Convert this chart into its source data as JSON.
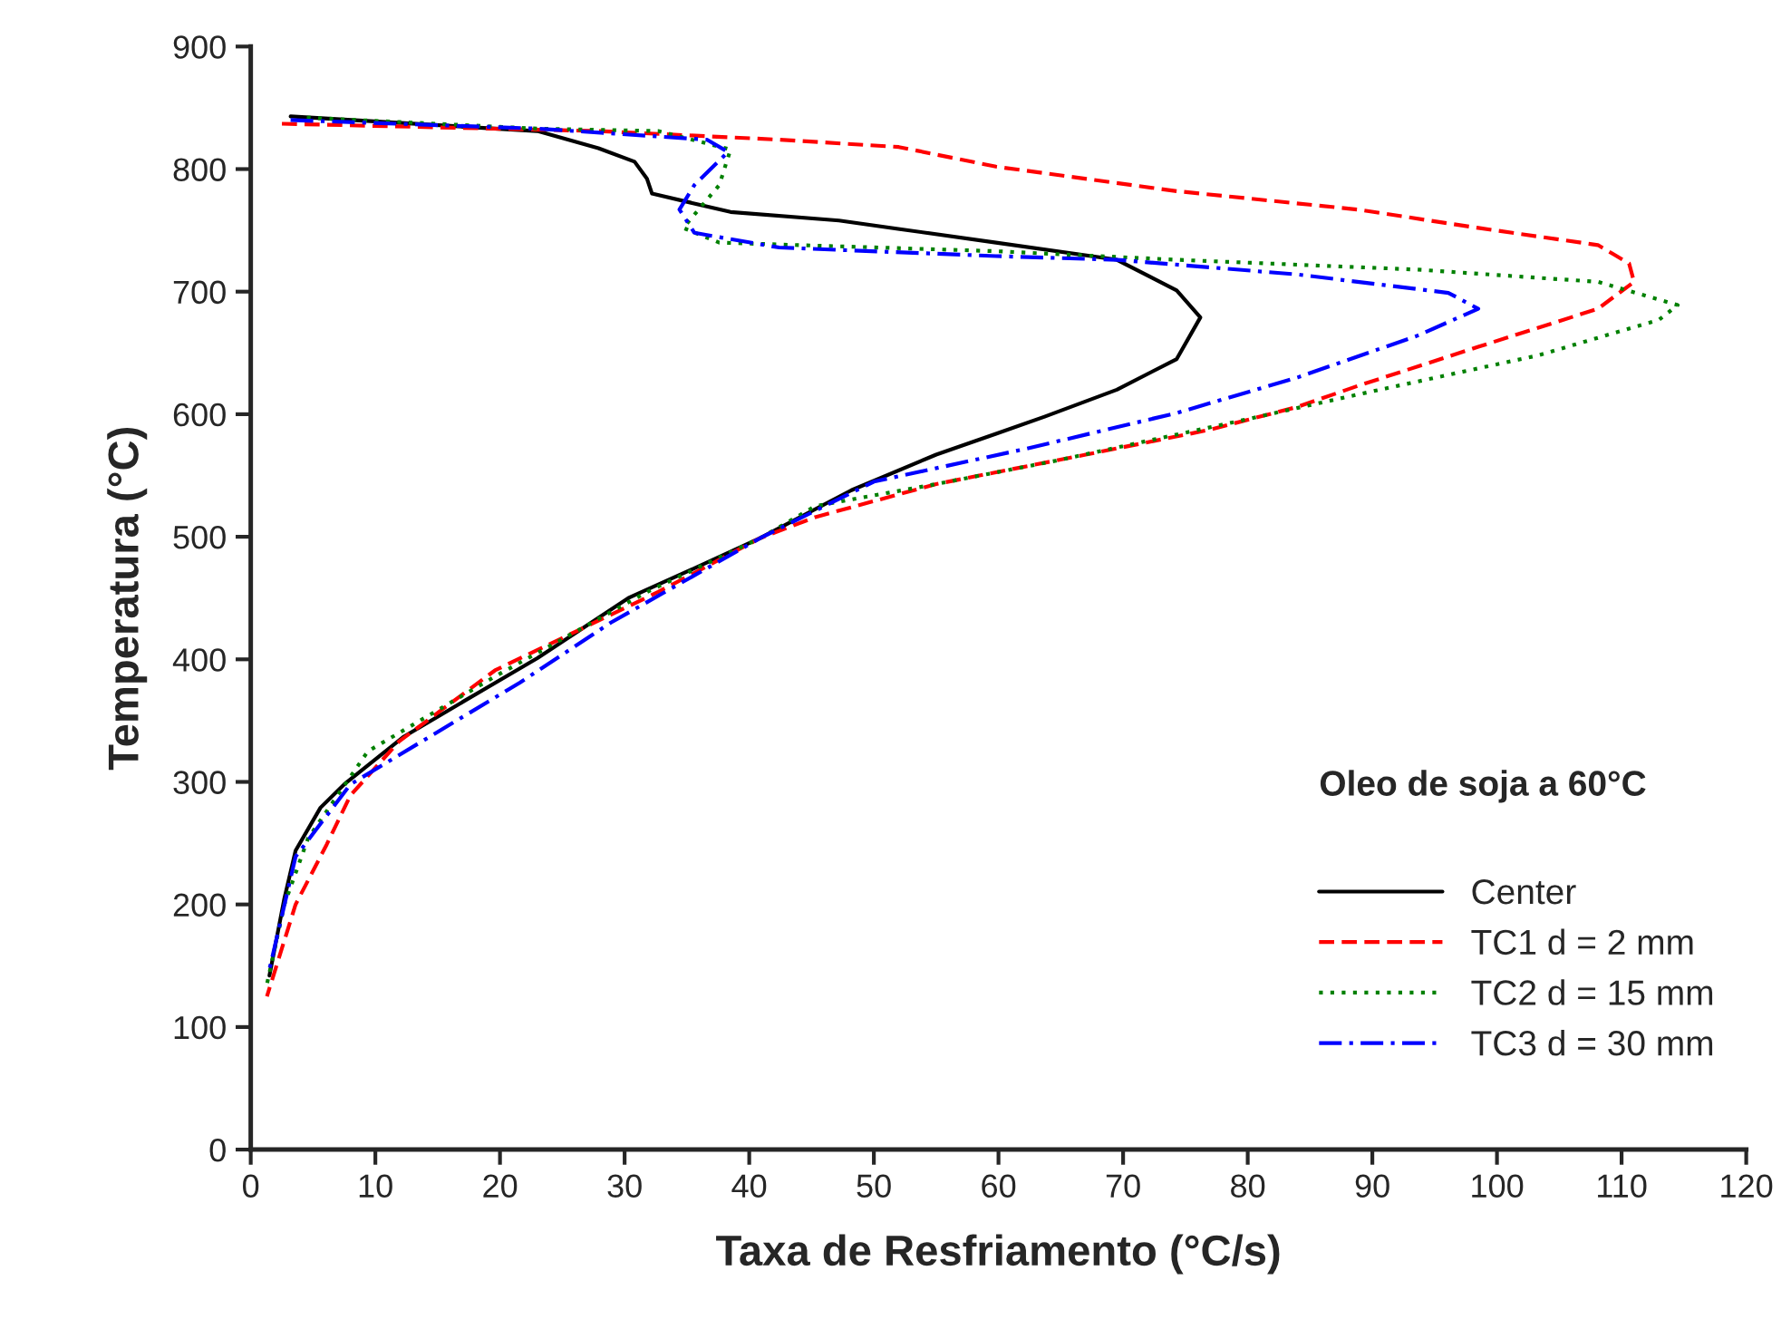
{
  "chart_data": {
    "type": "line",
    "xlabel": "Taxa de Resfriamento (°C/s)",
    "ylabel": "Temperatura (°C)",
    "legend_title": "Oleo de soja a 60°C",
    "legend": "bottom right",
    "grid": false,
    "xlim": [
      0,
      120
    ],
    "xticks": [
      0,
      10,
      20,
      30,
      40,
      50,
      60,
      70,
      80,
      90,
      100,
      110,
      120
    ],
    "ylim": [
      0,
      900
    ],
    "yticks": [
      0,
      100,
      200,
      300,
      400,
      500,
      600,
      700,
      800,
      900
    ],
    "series": [
      {
        "name": "Center",
        "color": "#000000",
        "line_style": "solid",
        "x": [
          3.2,
          23,
          27.9,
          30.8,
          31.8,
          32.2,
          38.5,
          47.2,
          59.8,
          69.5,
          74.3,
          76.2,
          74.3,
          69.5,
          63.7,
          59.8,
          55,
          48.2,
          40.9,
          35.1,
          30.3,
          23,
          17.3,
          12.3,
          7.5,
          5.6,
          3.6,
          2.7,
          1.5
        ],
        "values": [
          843,
          831,
          817,
          806,
          792,
          780,
          765,
          758,
          740,
          726,
          701,
          679,
          645,
          620,
          598,
          584,
          567,
          538,
          499,
          472,
          450,
          401,
          367,
          337,
          298,
          279,
          244,
          205,
          142
        ]
      },
      {
        "name": "TC1 d = 2 mm",
        "color": "#ff0000",
        "line_style": "dashed",
        "x": [
          2.5,
          27.9,
          42.4,
          52,
          59.8,
          74.3,
          88.8,
          98.5,
          108.1,
          110.6,
          111,
          108.1,
          98.5,
          88.8,
          84,
          76.8,
          67,
          55,
          45.3,
          40.9,
          32.7,
          19.6,
          11.9,
          8,
          6.1,
          3.6,
          1.3
        ],
        "values": [
          837,
          831,
          824,
          818,
          802,
          782,
          767,
          752,
          738,
          723,
          708,
          686,
          655,
          623,
          606,
          587,
          567,
          543,
          516,
          499,
          455,
          391,
          333,
          289,
          249,
          200,
          125
        ]
      },
      {
        "name": "TC2 d = 15 mm",
        "color": "#008000",
        "line_style": "dotted",
        "x": [
          4.5,
          23,
          32.7,
          38.5,
          37.6,
          34.7,
          37.6,
          59.8,
          74.3,
          93.6,
          108.1,
          114.5,
          113,
          103.3,
          88.8,
          79.1,
          64.6,
          55,
          45.3,
          40.9,
          31.8,
          19.6,
          9.4,
          4.6,
          2.7,
          1.3
        ],
        "values": [
          842,
          833,
          831,
          816,
          787,
          752,
          740,
          733,
          726,
          718,
          708,
          689,
          677,
          648,
          616,
          594,
          562,
          543,
          525,
          499,
          455,
          386,
          325,
          254,
          200,
          135
        ]
      },
      {
        "name": "TC3 d = 30 mm",
        "color": "#0000ff",
        "line_style": "dashdot",
        "x": [
          3.2,
          23,
          36.6,
          38.3,
          35.6,
          34.4,
          35.6,
          42.4,
          59.8,
          69.5,
          84,
          96.1,
          98.5,
          93.6,
          84,
          74.3,
          62.3,
          50,
          40.9,
          28.9,
          21.6,
          15.2,
          8,
          3.6,
          1.5
        ],
        "values": [
          840,
          833,
          824,
          814,
          787,
          767,
          748,
          736,
          729,
          726,
          714,
          699,
          686,
          664,
          630,
          601,
          572,
          545,
          499,
          430,
          381,
          342,
          298,
          239,
          147
        ]
      }
    ]
  }
}
